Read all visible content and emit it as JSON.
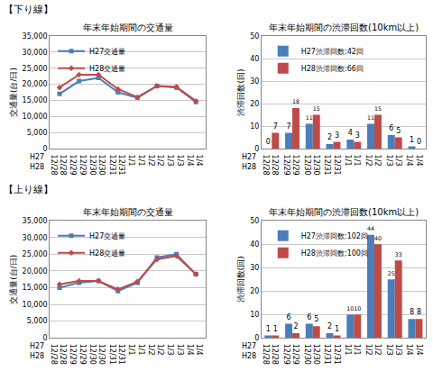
{
  "sections": [
    "【下り線】",
    "【上り線】"
  ],
  "chart_data": [
    {
      "type": "line",
      "title": "年末年始期間の交通量",
      "y_label": "交通量(台/日)",
      "category_rows": [
        "H27",
        "H28"
      ],
      "categories": [
        "12/28",
        "12/29",
        "12/30",
        "12/31",
        "1/1",
        "1/2",
        "1/3",
        "1/4"
      ],
      "categories_row2": [
        "12/28",
        "12/29",
        "12/30",
        "12/31",
        "1/1",
        "1/2",
        "1/3",
        "1/4"
      ],
      "series": [
        {
          "name": "H27交通量",
          "color": "#4a7ebb",
          "marker": "square",
          "values": [
            17000,
            21000,
            22000,
            17500,
            15800,
            19500,
            19000,
            14500
          ]
        },
        {
          "name": "H28交通量",
          "color": "#be4b48",
          "marker": "diamond",
          "values": [
            19000,
            23000,
            23000,
            18500,
            16000,
            19500,
            19200,
            14800
          ]
        }
      ],
      "ylim": [
        0,
        35000
      ],
      "yticks": [
        0,
        {
          "value": 5000,
          "label": "5,000"
        },
        {
          "value": 10000,
          "label": "10,000"
        },
        {
          "value": 15000,
          "label": "15,000"
        },
        {
          "value": 20000,
          "label": "20,000"
        },
        {
          "value": 25000,
          "label": "25,000"
        },
        {
          "value": 30000,
          "label": "30,000"
        },
        {
          "value": 35000,
          "label": "35,000"
        }
      ],
      "grid": true,
      "legend": "upper left"
    },
    {
      "type": "bar",
      "title": "年末年始期間の渋滞回数(10km以上)",
      "y_label": "渋滞回数(回)",
      "category_rows": [
        "H27",
        "H28"
      ],
      "categories": [
        "12/28",
        "12/29",
        "12/30",
        "12/31",
        "1/1",
        "1/2",
        "1/3",
        "1/4"
      ],
      "categories_row2": [
        "12/28",
        "12/29",
        "12/30",
        "12/31",
        "1/1",
        "1/2",
        "1/3",
        "1/4"
      ],
      "series": [
        {
          "name": "H27渋滞回数:42回",
          "color": "#4a7ebb",
          "values": [
            0,
            7,
            11,
            2,
            4,
            11,
            6,
            1
          ]
        },
        {
          "name": "H28渋滞回数:66回",
          "color": "#be4b48",
          "values": [
            7,
            18,
            15,
            3,
            3,
            15,
            5,
            0
          ]
        }
      ],
      "ylim": [
        0,
        50
      ],
      "yticks": [
        0,
        10,
        20,
        30,
        40,
        50
      ],
      "grid": true,
      "legend": "upper left",
      "data_labels": true
    },
    {
      "type": "line",
      "title": "年末年始期間の交通量",
      "y_label": "交通量(台/日)",
      "category_rows": [
        "H27",
        "H28"
      ],
      "categories": [
        "12/28",
        "12/29",
        "12/30",
        "12/31",
        "1/1",
        "1/2",
        "1/3",
        "1/4"
      ],
      "categories_row2": [
        "12/28",
        "12/29",
        "12/30",
        "12/31",
        "1/1",
        "1/2",
        "1/3",
        "1/4"
      ],
      "series": [
        {
          "name": "H27交通量",
          "color": "#4a7ebb",
          "marker": "square",
          "values": [
            15000,
            16500,
            17000,
            14000,
            16500,
            24000,
            25000,
            19000
          ]
        },
        {
          "name": "H28交通量",
          "color": "#be4b48",
          "marker": "diamond",
          "values": [
            16000,
            17000,
            17000,
            14500,
            16800,
            23500,
            24500,
            19000
          ]
        }
      ],
      "ylim": [
        0,
        35000
      ],
      "yticks": [
        0,
        {
          "value": 5000,
          "label": "5,000"
        },
        {
          "value": 10000,
          "label": "10,000"
        },
        {
          "value": 15000,
          "label": "15,000"
        },
        {
          "value": 20000,
          "label": "20,000"
        },
        {
          "value": 25000,
          "label": "25,000"
        },
        {
          "value": 30000,
          "label": "30,000"
        },
        {
          "value": 35000,
          "label": "35,000"
        }
      ],
      "grid": true,
      "legend": "upper left"
    },
    {
      "type": "bar",
      "title": "年末年始期間の渋滞回数(10km以上)",
      "y_label": "渋滞回数(回)",
      "category_rows": [
        "H27",
        "H28"
      ],
      "categories": [
        "12/28",
        "12/29",
        "12/30",
        "12/31",
        "1/1",
        "1/2",
        "1/3",
        "1/4"
      ],
      "categories_row2": [
        "12/28",
        "12/29",
        "12/30",
        "12/31",
        "1/1",
        "1/2",
        "1/3",
        "1/4"
      ],
      "series": [
        {
          "name": "H27渋滞回数:102回",
          "color": "#4a7ebb",
          "values": [
            1,
            6,
            6,
            2,
            10,
            44,
            25,
            8
          ]
        },
        {
          "name": "H28渋滞回数:100回",
          "color": "#be4b48",
          "values": [
            1,
            2,
            5,
            1,
            10,
            40,
            33,
            8
          ]
        }
      ],
      "ylim": [
        0,
        50
      ],
      "yticks": [
        0,
        10,
        20,
        30,
        40,
        50
      ],
      "grid": true,
      "legend": "upper left",
      "data_labels": true
    }
  ]
}
